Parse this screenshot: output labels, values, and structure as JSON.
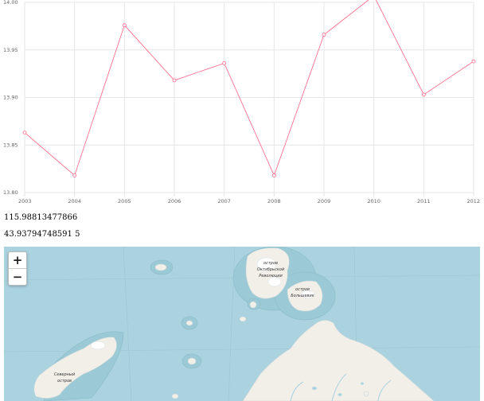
{
  "chart_data": {
    "type": "line",
    "title": "",
    "xlabel": "",
    "ylabel": "",
    "x": [
      2003,
      2004,
      2005,
      2006,
      2007,
      2008,
      2009,
      2010,
      2011,
      2012
    ],
    "series": [
      {
        "values": [
          13.863,
          13.818,
          13.976,
          13.918,
          13.936,
          13.818,
          13.966,
          14.007,
          13.903,
          13.938
        ]
      }
    ],
    "xticks": [
      "2003",
      "2004",
      "2005",
      "2006",
      "2007",
      "2008",
      "2009",
      "2010",
      "2011",
      "2012"
    ],
    "yticks": [
      "13.80",
      "13.85",
      "13.90",
      "13.95",
      "14.00"
    ],
    "ylim": [
      13.8,
      14.0
    ],
    "xlim": [
      2003,
      2012
    ],
    "grid": true,
    "line_color": "#ff6384"
  },
  "readout": {
    "longitude": "115.98813477866",
    "latitude": "43.93794748591 5"
  },
  "map": {
    "zoom_in_label": "+",
    "zoom_out_label": "−",
    "labels": {
      "october_revolution_island": [
        "остров",
        "Октябрьской",
        "Революции"
      ],
      "bolshevik_island": [
        "остров",
        "Большевик"
      ],
      "severny_island": [
        "Северный",
        "остров"
      ]
    },
    "colors": {
      "water": "#aad3df",
      "land": "#f2efe9",
      "ice": "#ffffff",
      "shallow": "#9cc9d6"
    }
  }
}
